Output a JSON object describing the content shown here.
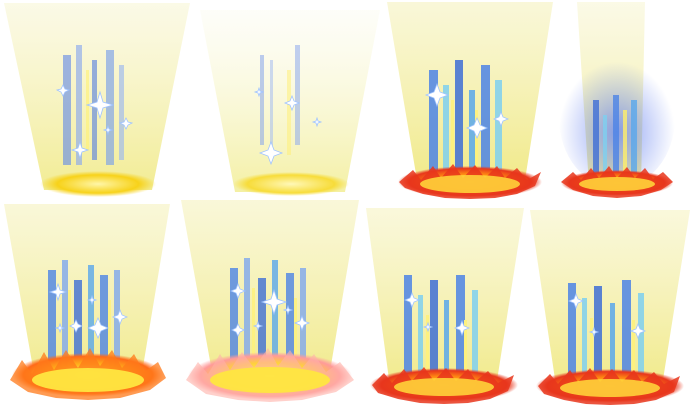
{
  "sheet": {
    "frames": [
      {
        "id": "frame-1",
        "variant": "beam-sparkle-gold-base",
        "sparkles": 5,
        "flame_ring": false
      },
      {
        "id": "frame-2",
        "variant": "beam-faint-sparkle-gold-base",
        "sparkles": 4,
        "flame_ring": false
      },
      {
        "id": "frame-3",
        "variant": "beam-strong-blue-flame-ring",
        "sparkles": 3,
        "flame_ring": true
      },
      {
        "id": "frame-4",
        "variant": "narrow-beam-blue-glow-flame-ring",
        "sparkles": 0,
        "flame_ring": true
      },
      {
        "id": "frame-5",
        "variant": "beam-many-sparkles-burst",
        "sparkles": 6,
        "flame_ring": true
      },
      {
        "id": "frame-6",
        "variant": "beam-many-sparkles-pink-burst",
        "sparkles": 6,
        "flame_ring": true
      },
      {
        "id": "frame-7",
        "variant": "beam-blue-streaks-flame-ring",
        "sparkles": 3,
        "flame_ring": true
      },
      {
        "id": "frame-8",
        "variant": "beam-blue-streaks-flame-ring-alt",
        "sparkles": 3,
        "flame_ring": true
      }
    ],
    "colors": {
      "beam_top": "#f7f4c8",
      "beam_bottom": "#f3ef9a",
      "gold_base": "#f7d21a",
      "streak_blue": "#4d84e6",
      "streak_cyan": "#7fd0f0",
      "flame_red": "#e8361c",
      "flame_orange": "#ff8a12",
      "flame_yellow": "#ffe640",
      "sparkle_white": "#ffffff"
    }
  }
}
